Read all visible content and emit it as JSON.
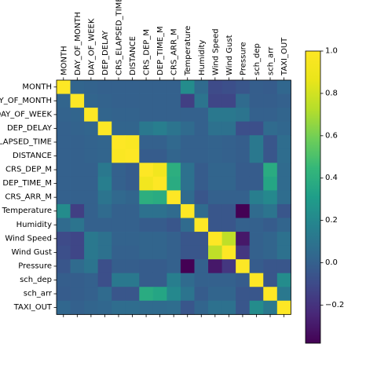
{
  "chart_data": {
    "type": "heatmap",
    "title": "",
    "labels": [
      "MONTH",
      "DAY_OF_MONTH",
      "DAY_OF_WEEK",
      "DEP_DELAY",
      "CRS_ELAPSED_TIME",
      "DISTANCE",
      "CRS_DEP_M",
      "DEP_TIME_M",
      "CRS_ARR_M",
      "Temperature",
      "Humidity",
      "Wind Speed",
      "Wind Gust",
      "Pressure",
      "sch_dep",
      "sch_arr",
      "TAXI_OUT"
    ],
    "row_tick_labels": [
      "MONTH",
      "DAY_OF_MONTH",
      "DAY_OF_WEEK",
      "DEP_DELAY",
      "CRS_ELAPSED_TIME",
      "DISTANCE",
      "CRS_DEP_M",
      "DEP_TIME_M",
      "CRS_ARR_M",
      "Temperature",
      "Humidity",
      "Wind Speed",
      "Wind Gust",
      "Pressure",
      "sch_dep",
      "sch_arr",
      "TAXI_OUT"
    ],
    "col_tick_labels": [
      "MONTH",
      "DAY_OF_MONTH",
      "DAY_OF_WEEK",
      "DEP_DELAY",
      "CRS_ELAPSED_TIME",
      "DISTANCE",
      "CRS_DEP_M",
      "DEP_TIME_M",
      "CRS_ARR_M",
      "Temperature",
      "Humidity",
      "Wind Speed",
      "Wind Gust",
      "Pressure",
      "sch_dep",
      "sch_arr",
      "TAXI_OUT"
    ],
    "matrix": [
      [
        1.0,
        0.02,
        0.01,
        0.0,
        0.0,
        0.0,
        0.0,
        0.0,
        0.0,
        0.22,
        0.05,
        -0.1,
        -0.08,
        -0.05,
        -0.01,
        -0.02,
        0.03
      ],
      [
        0.02,
        1.0,
        0.02,
        0.01,
        0.0,
        0.0,
        0.0,
        0.0,
        0.0,
        -0.15,
        0.1,
        -0.12,
        -0.12,
        0.05,
        -0.01,
        -0.01,
        0.0
      ],
      [
        0.01,
        0.02,
        1.0,
        0.02,
        0.01,
        0.01,
        0.0,
        0.0,
        0.0,
        0.0,
        0.0,
        0.12,
        0.12,
        0.1,
        0.0,
        0.0,
        0.02
      ],
      [
        0.0,
        0.01,
        0.02,
        1.0,
        0.02,
        0.02,
        0.12,
        0.15,
        0.1,
        0.05,
        0.0,
        0.08,
        0.08,
        -0.08,
        -0.08,
        0.05,
        0.03
      ],
      [
        0.0,
        0.0,
        0.01,
        0.02,
        1.0,
        0.98,
        0.0,
        0.0,
        0.04,
        0.0,
        0.0,
        0.01,
        0.0,
        -0.01,
        0.12,
        -0.05,
        0.06
      ],
      [
        0.0,
        0.0,
        0.01,
        0.02,
        0.98,
        1.0,
        -0.02,
        -0.02,
        0.02,
        0.0,
        0.0,
        0.01,
        0.0,
        -0.01,
        0.12,
        -0.05,
        0.06
      ],
      [
        0.0,
        0.0,
        0.0,
        0.12,
        0.0,
        -0.02,
        1.0,
        0.92,
        0.4,
        0.08,
        -0.02,
        0.02,
        0.02,
        -0.02,
        -0.02,
        0.38,
        0.05
      ],
      [
        0.0,
        0.0,
        0.0,
        0.15,
        0.0,
        -0.02,
        0.92,
        1.0,
        0.38,
        0.08,
        -0.02,
        0.02,
        0.02,
        -0.02,
        -0.02,
        0.35,
        0.05
      ],
      [
        0.0,
        0.0,
        0.0,
        0.1,
        0.04,
        0.02,
        0.4,
        0.38,
        1.0,
        0.05,
        -0.05,
        0.0,
        0.0,
        0.0,
        0.15,
        0.2,
        0.06
      ],
      [
        0.22,
        -0.15,
        0.0,
        0.05,
        0.0,
        0.0,
        0.08,
        0.08,
        0.05,
        1.0,
        0.05,
        -0.05,
        -0.05,
        -0.38,
        0.05,
        0.1,
        -0.05
      ],
      [
        0.05,
        0.1,
        0.0,
        0.0,
        0.0,
        0.0,
        -0.02,
        -0.02,
        -0.05,
        0.05,
        1.0,
        -0.05,
        -0.05,
        0.0,
        0.0,
        -0.02,
        0.02
      ],
      [
        -0.1,
        -0.12,
        0.12,
        0.08,
        0.01,
        0.01,
        0.02,
        0.02,
        0.0,
        -0.05,
        -0.05,
        1.0,
        0.75,
        -0.3,
        0.0,
        0.02,
        0.08
      ],
      [
        -0.08,
        -0.12,
        0.12,
        0.08,
        0.0,
        0.0,
        0.02,
        0.02,
        0.0,
        -0.05,
        -0.05,
        0.75,
        1.0,
        -0.18,
        0.0,
        0.02,
        0.08
      ],
      [
        -0.05,
        0.05,
        0.1,
        -0.08,
        -0.01,
        -0.01,
        -0.02,
        -0.02,
        0.0,
        -0.38,
        0.0,
        -0.3,
        -0.18,
        1.0,
        -0.02,
        -0.05,
        -0.05
      ],
      [
        -0.01,
        -0.01,
        0.0,
        -0.08,
        0.12,
        0.12,
        -0.02,
        -0.02,
        0.15,
        0.05,
        0.0,
        0.0,
        0.0,
        -0.02,
        1.0,
        -0.05,
        0.22
      ],
      [
        -0.02,
        -0.01,
        0.0,
        0.05,
        -0.05,
        -0.05,
        0.38,
        0.35,
        0.2,
        0.1,
        -0.02,
        0.02,
        0.02,
        -0.05,
        -0.05,
        1.0,
        0.12
      ],
      [
        0.03,
        0.0,
        0.02,
        0.03,
        0.06,
        0.06,
        0.05,
        0.05,
        0.06,
        -0.05,
        0.02,
        0.08,
        0.08,
        -0.05,
        0.22,
        0.12,
        1.0
      ]
    ],
    "colorbar": {
      "colormap": "viridis",
      "range": [
        -0.38,
        1.0
      ],
      "ticks": [
        1.0,
        0.8,
        0.6,
        0.4,
        0.2,
        0.0,
        -0.2
      ],
      "tick_labels": [
        "1.0",
        "0.8",
        "0.6",
        "0.4",
        "0.2",
        "0.0",
        "−0.2"
      ]
    }
  }
}
